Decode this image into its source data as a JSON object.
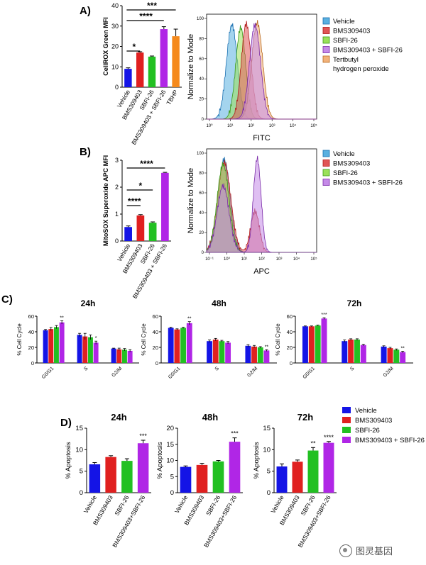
{
  "colors": {
    "vehicle": "#1414e6",
    "bms": "#e02020",
    "sbfi": "#22c022",
    "combo": "#b026e6",
    "tbhp": "#f58a1c"
  },
  "panel_labels": {
    "a": "A)",
    "b": "B)",
    "c": "C)",
    "d": "D)"
  },
  "chart_data": [
    {
      "id": "A-bar",
      "type": "bar",
      "ylabel": "CellROX Green MFI",
      "ylim": [
        0,
        40
      ],
      "yticks": [
        0,
        10,
        20,
        30,
        40
      ],
      "categories": [
        "Vehicle",
        "BMS309403",
        "SBFI-26",
        "BMS309403 + SBFI-26",
        "TBHP"
      ],
      "values": [
        9,
        17,
        15,
        28.5,
        25
      ],
      "errors": [
        0.5,
        0.4,
        0.3,
        1.2,
        3.5
      ],
      "colors": [
        "vehicle",
        "bms",
        "sbfi",
        "combo",
        "tbhp"
      ],
      "significance": [
        {
          "from": 0,
          "to": 1,
          "label": "*"
        },
        {
          "from": 0,
          "to": 3,
          "label": "****"
        },
        {
          "from": 0,
          "to": 4,
          "label": "***"
        }
      ]
    },
    {
      "id": "A-hist",
      "type": "histogram",
      "xlabel": "FITC",
      "ylabel": "Normalize to Mode",
      "xticks": [
        "10⁰",
        "10¹",
        "10²",
        "10³",
        "10⁴",
        "10⁵"
      ],
      "yticks": [
        "0",
        "20",
        "40",
        "60",
        "80",
        "100"
      ],
      "legend": [
        "Vehicle",
        "BMS309403",
        "SBFI-26",
        "BMS309403 + SBFI-26",
        "Tertbutyl hydrogen peroxide"
      ]
    },
    {
      "id": "B-bar",
      "type": "bar",
      "ylabel": "MitoSOX Superoxide APC MFI",
      "ylim": [
        0,
        3
      ],
      "yticks": [
        0,
        1,
        2,
        3
      ],
      "categories": [
        "Vehicle",
        "BMS309403",
        "SBFI-26",
        "BMS309403 + SBFI-26"
      ],
      "values": [
        0.52,
        0.95,
        0.68,
        2.53
      ],
      "errors": [
        0.04,
        0.03,
        0.03,
        0.02
      ],
      "colors": [
        "vehicle",
        "bms",
        "sbfi",
        "combo"
      ],
      "significance": [
        {
          "from": 0,
          "to": 1,
          "label": "****"
        },
        {
          "from": 0,
          "to": 2,
          "label": "*"
        },
        {
          "from": 0,
          "to": 3,
          "label": "****"
        }
      ]
    },
    {
      "id": "B-hist",
      "type": "histogram",
      "xlabel": "APC",
      "ylabel": "Normalize to Mode",
      "xticks": [
        "10⁻¹",
        "10⁰",
        "10¹",
        "10²",
        "10³",
        "10⁴",
        "10⁵"
      ],
      "yticks": [
        "0",
        "20",
        "40",
        "60",
        "80",
        "100"
      ],
      "legend": [
        "Vehicle",
        "BMS309403",
        "SBFI-26",
        "BMS309403 + SBFI-26"
      ]
    },
    {
      "id": "C-24h",
      "type": "bar",
      "title": "24h",
      "ylabel": "% Cell Cycle",
      "ylim": [
        0,
        60
      ],
      "yticks": [
        0,
        20,
        40,
        60
      ],
      "categories": [
        "G0/G1",
        "S",
        "G2/M"
      ],
      "series": [
        {
          "name": "Vehicle",
          "values": [
            42,
            36,
            18.5
          ]
        },
        {
          "name": "BMS309403",
          "values": [
            43.5,
            34,
            17.5
          ]
        },
        {
          "name": "SBFI-26",
          "values": [
            46,
            33,
            17
          ]
        },
        {
          "name": "BMS309403 + SBFI-26",
          "values": [
            52,
            26,
            15.5
          ]
        }
      ],
      "errors": [
        [
          1,
          2,
          0.5
        ],
        [
          2,
          4,
          1.5
        ],
        [
          2,
          3,
          1.5
        ],
        [
          2,
          2,
          1.5
        ]
      ],
      "stars": [
        [
          "",
          "",
          ""
        ],
        [
          "",
          "",
          ""
        ],
        [
          "",
          "",
          ""
        ],
        [
          "**",
          "*",
          ""
        ]
      ]
    },
    {
      "id": "C-48h",
      "type": "bar",
      "title": "48h",
      "ylabel": "% Cell Cycle",
      "ylim": [
        0,
        60
      ],
      "yticks": [
        0,
        20,
        40,
        60
      ],
      "categories": [
        "G0/G1",
        "S",
        "G2/M"
      ],
      "series": [
        {
          "name": "Vehicle",
          "values": [
            45,
            28,
            22
          ]
        },
        {
          "name": "BMS309403",
          "values": [
            43,
            30,
            21
          ]
        },
        {
          "name": "SBFI-26",
          "values": [
            45,
            28,
            20
          ]
        },
        {
          "name": "BMS309403 + SBFI-26",
          "values": [
            51,
            26,
            16
          ]
        }
      ],
      "errors": [
        [
          0.8,
          1.5,
          1.5
        ],
        [
          0.8,
          1.5,
          1.5
        ],
        [
          0.8,
          1,
          1
        ],
        [
          2,
          1.5,
          1
        ]
      ],
      "stars": [
        [
          "",
          "",
          ""
        ],
        [
          "",
          "",
          ""
        ],
        [
          "",
          "",
          ""
        ],
        [
          "**",
          "",
          "**"
        ]
      ]
    },
    {
      "id": "C-72h",
      "type": "bar",
      "title": "72h",
      "ylabel": "% Cell Cycle",
      "ylim": [
        0,
        60
      ],
      "yticks": [
        0,
        20,
        40,
        60
      ],
      "categories": [
        "G0/G1",
        "S",
        "G2/M"
      ],
      "series": [
        {
          "name": "Vehicle",
          "values": [
            47,
            28,
            21
          ]
        },
        {
          "name": "BMS309403",
          "values": [
            47,
            30,
            19
          ]
        },
        {
          "name": "SBFI-26",
          "values": [
            48,
            30,
            17
          ]
        },
        {
          "name": "BMS309403 + SBFI-26",
          "values": [
            57,
            23,
            14
          ]
        }
      ],
      "errors": [
        [
          0.5,
          1.5,
          1
        ],
        [
          0.5,
          1,
          1
        ],
        [
          0.5,
          1,
          1
        ],
        [
          1,
          1,
          1
        ]
      ],
      "stars": [
        [
          "",
          "",
          ""
        ],
        [
          "",
          "",
          ""
        ],
        [
          "",
          "",
          ""
        ],
        [
          "***",
          "",
          "**"
        ]
      ]
    },
    {
      "id": "D-24h",
      "type": "bar",
      "title": "24h",
      "ylabel": "% Apoptosis",
      "ylim": [
        0,
        15
      ],
      "yticks": [
        0,
        5,
        10,
        15
      ],
      "categories": [
        "Vehicle",
        "BMS309403",
        "SBFI-26",
        "BMS309403+SBFI-26"
      ],
      "values": [
        6.6,
        8.3,
        7.4,
        11.5
      ],
      "errors": [
        0.4,
        0.3,
        0.5,
        0.7
      ],
      "stars": [
        "",
        "",
        "",
        "***"
      ]
    },
    {
      "id": "D-48h",
      "type": "bar",
      "title": "48h",
      "ylabel": "% Apoptosis",
      "ylim": [
        0,
        20
      ],
      "yticks": [
        0,
        5,
        10,
        15,
        20
      ],
      "categories": [
        "Vehicle",
        "BMS309403",
        "SBFI-26",
        "BMS309403+SBFI-26"
      ],
      "values": [
        8,
        8.6,
        9.7,
        15.8
      ],
      "errors": [
        0.3,
        0.5,
        0.3,
        1.2
      ],
      "stars": [
        "",
        "",
        "",
        "***"
      ]
    },
    {
      "id": "D-72h",
      "type": "bar",
      "title": "72h",
      "ylabel": "% Apoptosis",
      "ylim": [
        0,
        15
      ],
      "yticks": [
        0,
        5,
        10,
        15
      ],
      "categories": [
        "Vehicle",
        "BMS309403",
        "SBFI-26",
        "BMS309403+SBFI-26"
      ],
      "values": [
        6.1,
        7.2,
        9.8,
        11.6
      ],
      "errors": [
        0.6,
        0.4,
        0.7,
        0.3
      ],
      "stars": [
        "",
        "",
        "**",
        "****"
      ]
    }
  ],
  "legend_D": [
    "Vehicle",
    "BMS309403",
    "SBFI-26",
    "BMS309403 + SBFI-26"
  ],
  "watermark": "图灵基因"
}
